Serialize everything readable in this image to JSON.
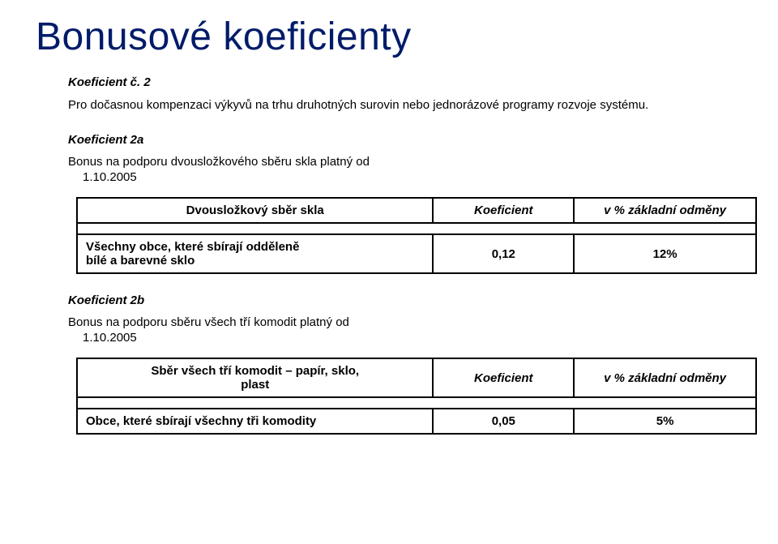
{
  "title": "Bonusové koeficienty",
  "k2": {
    "heading": "Koeficient č. 2",
    "para": "Pro dočasnou kompenzaci výkyvů na trhu druhotných surovin nebo jednorázové programy rozvoje systému."
  },
  "k2a": {
    "heading": "Koeficient 2a",
    "lead": "Bonus na podporu dvousložkového sběru skla platný od",
    "date": "1.10.2005",
    "table": {
      "h1": "Dvousložkový sběr skla",
      "h2": "Koeficient",
      "h3": "v % základní odměny",
      "r1c1a": "Všechny obce, které sbírají odděleně",
      "r1c1b": "bílé a barevné sklo",
      "r1c2": "0,12",
      "r1c3": "12%"
    }
  },
  "k2b": {
    "heading": "Koeficient 2b",
    "lead": "Bonus na podporu sběru všech tří komodit platný od",
    "date": "1.10.2005",
    "table": {
      "h1a": "Sběr všech tří komodit – papír, sklo,",
      "h1b": "plast",
      "h2": "Koeficient",
      "h3": "v % základní odměny",
      "r1c1": "Obce, které sbírají všechny tři komodity",
      "r1c2": "0,05",
      "r1c3": "5%"
    }
  },
  "colors": {
    "title": "#001b69",
    "text": "#000000",
    "border": "#000000",
    "bg": "#ffffff"
  },
  "fonts": {
    "title_fontsize": 48,
    "body_fontsize": 15,
    "family": "Verdana"
  },
  "table_layout": {
    "total_width": 840,
    "col1_width": 430,
    "col2_width": 170,
    "col3_width": 220,
    "border_width": 2
  }
}
